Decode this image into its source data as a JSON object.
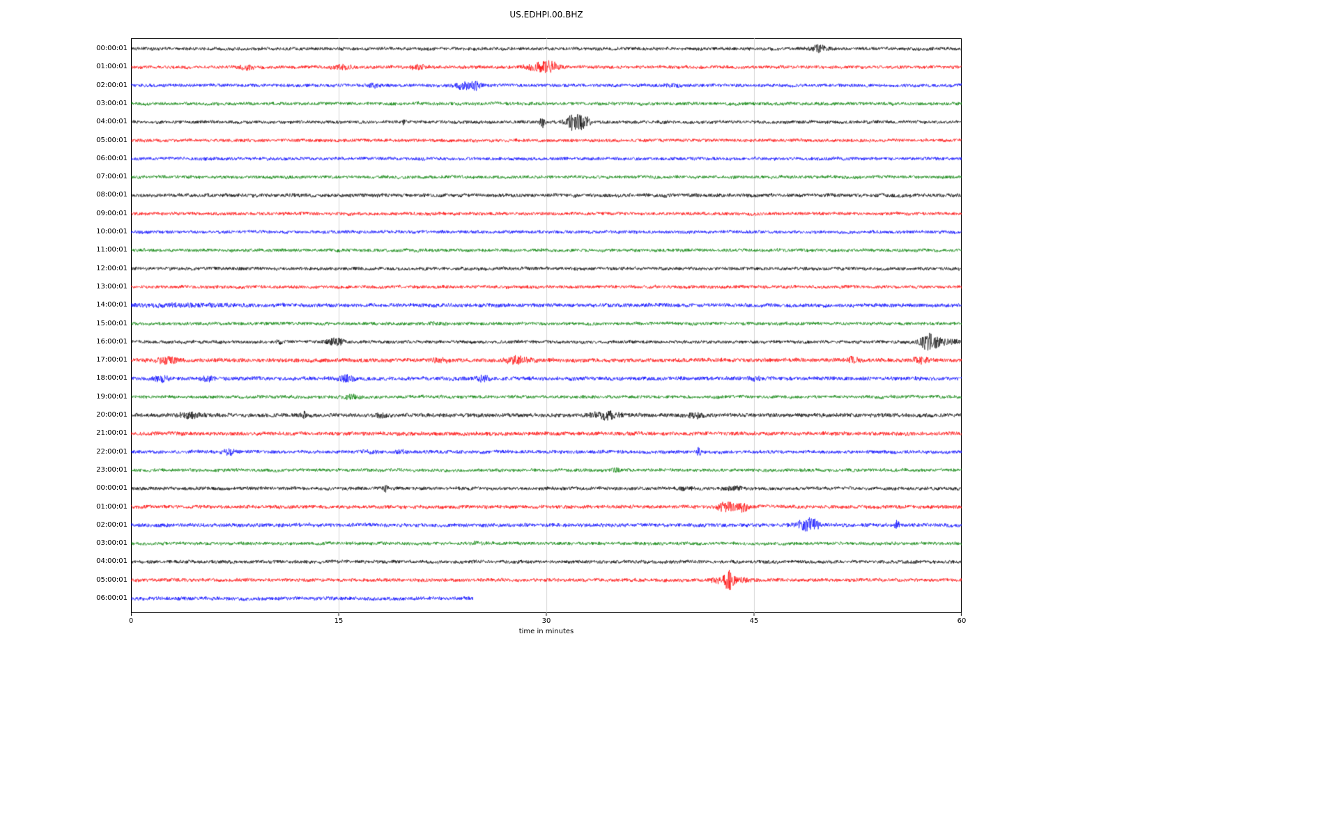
{
  "chart_data": {
    "type": "line",
    "title": "US.EDHPI.00.BHZ",
    "xlabel": "time in minutes",
    "x_range": [
      0,
      60
    ],
    "x_ticks": [
      0,
      15,
      30,
      45,
      60
    ],
    "grid": "vertical-lines-at-15-30-45",
    "legend": "none",
    "color_cycle": [
      "#000000",
      "#ff0000",
      "#0000ff",
      "#008000"
    ],
    "description": "Helicorder day-plot: 31 hourly seismogram traces, one row per hour, noise band with transient event bursts",
    "rows": [
      {
        "label": "00:00:01",
        "color": "#000000",
        "amp": 1.0,
        "end": 60,
        "events": [
          {
            "t": 49.7,
            "a": 2.0,
            "d": 0.4
          }
        ]
      },
      {
        "label": "01:00:01",
        "color": "#ff0000",
        "amp": 1.0,
        "end": 60,
        "events": [
          {
            "t": 8.3,
            "a": 1.4,
            "d": 0.3
          },
          {
            "t": 15.3,
            "a": 1.2,
            "d": 0.5
          },
          {
            "t": 20.8,
            "a": 1.1,
            "d": 0.4
          },
          {
            "t": 29.5,
            "a": 2.2,
            "d": 0.7
          },
          {
            "t": 30.3,
            "a": 2.0,
            "d": 0.4
          }
        ]
      },
      {
        "label": "02:00:01",
        "color": "#0000ff",
        "amp": 1.0,
        "end": 60,
        "events": [
          {
            "t": 17.5,
            "a": 1.0,
            "d": 0.3
          },
          {
            "t": 24.0,
            "a": 2.6,
            "d": 0.4
          },
          {
            "t": 24.9,
            "a": 2.2,
            "d": 0.3
          },
          {
            "t": 39.0,
            "a": 0.7,
            "d": 0.4
          }
        ]
      },
      {
        "label": "03:00:01",
        "color": "#008000",
        "amp": 1.0,
        "end": 60,
        "events": []
      },
      {
        "label": "04:00:01",
        "color": "#000000",
        "amp": 1.0,
        "end": 60,
        "events": [
          {
            "t": 19.7,
            "a": 1.5,
            "d": 0.1
          },
          {
            "t": 29.7,
            "a": 3.2,
            "d": 0.12
          },
          {
            "t": 32.0,
            "a": 5.0,
            "d": 0.4
          },
          {
            "t": 32.7,
            "a": 3.5,
            "d": 0.3
          }
        ]
      },
      {
        "label": "05:00:01",
        "color": "#ff0000",
        "amp": 1.0,
        "end": 60,
        "events": []
      },
      {
        "label": "06:00:01",
        "color": "#0000ff",
        "amp": 1.0,
        "end": 60,
        "events": []
      },
      {
        "label": "07:00:01",
        "color": "#008000",
        "amp": 1.0,
        "end": 60,
        "events": []
      },
      {
        "label": "08:00:01",
        "color": "#000000",
        "amp": 1.15,
        "end": 60,
        "events": []
      },
      {
        "label": "09:00:01",
        "color": "#ff0000",
        "amp": 1.0,
        "end": 60,
        "events": []
      },
      {
        "label": "10:00:01",
        "color": "#0000ff",
        "amp": 1.0,
        "end": 60,
        "events": []
      },
      {
        "label": "11:00:01",
        "color": "#008000",
        "amp": 1.0,
        "end": 60,
        "events": []
      },
      {
        "label": "12:00:01",
        "color": "#000000",
        "amp": 1.05,
        "end": 60,
        "events": []
      },
      {
        "label": "13:00:01",
        "color": "#ff0000",
        "amp": 1.0,
        "end": 60,
        "events": []
      },
      {
        "label": "14:00:01",
        "color": "#0000ff",
        "amp": 1.2,
        "end": 60,
        "events": [
          {
            "t": 3.0,
            "a": 0.4,
            "d": 3.0
          }
        ]
      },
      {
        "label": "15:00:01",
        "color": "#008000",
        "amp": 1.0,
        "end": 60,
        "events": [
          {
            "t": 22.0,
            "a": 0.5,
            "d": 0.5
          }
        ]
      },
      {
        "label": "16:00:01",
        "color": "#000000",
        "amp": 1.0,
        "end": 60,
        "events": [
          {
            "t": 10.8,
            "a": 1.0,
            "d": 0.2
          },
          {
            "t": 14.8,
            "a": 2.2,
            "d": 0.4
          },
          {
            "t": 57.6,
            "a": 4.0,
            "d": 0.4
          },
          {
            "t": 58.5,
            "a": 1.8,
            "d": 0.8
          }
        ]
      },
      {
        "label": "17:00:01",
        "color": "#ff0000",
        "amp": 1.25,
        "end": 60,
        "events": [
          {
            "t": 2.6,
            "a": 1.4,
            "d": 0.5
          },
          {
            "t": 22.3,
            "a": 1.1,
            "d": 0.3
          },
          {
            "t": 27.9,
            "a": 1.7,
            "d": 0.6
          },
          {
            "t": 52.2,
            "a": 1.1,
            "d": 0.3
          },
          {
            "t": 57.0,
            "a": 1.2,
            "d": 0.4
          }
        ]
      },
      {
        "label": "18:00:01",
        "color": "#0000ff",
        "amp": 1.2,
        "end": 60,
        "events": [
          {
            "t": 2.2,
            "a": 1.3,
            "d": 0.4
          },
          {
            "t": 5.5,
            "a": 1.2,
            "d": 0.3
          },
          {
            "t": 15.5,
            "a": 1.5,
            "d": 0.4
          },
          {
            "t": 25.4,
            "a": 1.3,
            "d": 0.3
          },
          {
            "t": 45.0,
            "a": 0.7,
            "d": 0.3
          }
        ]
      },
      {
        "label": "19:00:01",
        "color": "#008000",
        "amp": 1.0,
        "end": 60,
        "events": [
          {
            "t": 15.9,
            "a": 1.2,
            "d": 0.4
          }
        ]
      },
      {
        "label": "20:00:01",
        "color": "#000000",
        "amp": 1.25,
        "end": 60,
        "events": [
          {
            "t": 4.2,
            "a": 1.1,
            "d": 0.6
          },
          {
            "t": 12.5,
            "a": 1.5,
            "d": 0.12
          },
          {
            "t": 18.0,
            "a": 0.8,
            "d": 0.3
          },
          {
            "t": 34.3,
            "a": 1.7,
            "d": 0.7
          },
          {
            "t": 40.8,
            "a": 1.2,
            "d": 0.3
          }
        ]
      },
      {
        "label": "21:00:01",
        "color": "#ff0000",
        "amp": 1.2,
        "end": 60,
        "events": []
      },
      {
        "label": "22:00:01",
        "color": "#0000ff",
        "amp": 1.05,
        "end": 60,
        "events": [
          {
            "t": 7.1,
            "a": 1.5,
            "d": 0.3
          },
          {
            "t": 17.2,
            "a": 0.9,
            "d": 0.3
          },
          {
            "t": 19.5,
            "a": 0.8,
            "d": 0.2
          },
          {
            "t": 41.0,
            "a": 2.2,
            "d": 0.12
          }
        ]
      },
      {
        "label": "23:00:01",
        "color": "#008000",
        "amp": 1.0,
        "end": 60,
        "events": [
          {
            "t": 35.0,
            "a": 0.8,
            "d": 0.3
          }
        ]
      },
      {
        "label": "00:00:01",
        "color": "#000000",
        "amp": 1.05,
        "end": 60,
        "events": [
          {
            "t": 18.4,
            "a": 1.8,
            "d": 0.1
          },
          {
            "t": 40.0,
            "a": 0.8,
            "d": 0.5
          },
          {
            "t": 43.5,
            "a": 0.9,
            "d": 0.5
          }
        ]
      },
      {
        "label": "01:00:01",
        "color": "#ff0000",
        "amp": 1.1,
        "end": 60,
        "events": [
          {
            "t": 43.0,
            "a": 2.4,
            "d": 0.5
          },
          {
            "t": 44.2,
            "a": 2.0,
            "d": 0.3
          }
        ]
      },
      {
        "label": "02:00:01",
        "color": "#0000ff",
        "amp": 1.15,
        "end": 60,
        "events": [
          {
            "t": 48.7,
            "a": 2.4,
            "d": 0.5
          },
          {
            "t": 49.3,
            "a": 1.9,
            "d": 0.3
          },
          {
            "t": 55.3,
            "a": 1.8,
            "d": 0.12
          }
        ]
      },
      {
        "label": "03:00:01",
        "color": "#008000",
        "amp": 1.0,
        "end": 60,
        "events": [
          {
            "t": 25.0,
            "a": 0.6,
            "d": 0.3
          }
        ]
      },
      {
        "label": "04:00:01",
        "color": "#000000",
        "amp": 1.05,
        "end": 60,
        "events": []
      },
      {
        "label": "05:00:01",
        "color": "#ff0000",
        "amp": 1.05,
        "end": 60,
        "events": [
          {
            "t": 42.5,
            "a": 1.5,
            "d": 0.5
          },
          {
            "t": 43.2,
            "a": 5.5,
            "d": 0.2
          },
          {
            "t": 44.0,
            "a": 1.2,
            "d": 0.5
          }
        ]
      },
      {
        "label": "06:00:01",
        "color": "#0000ff",
        "amp": 1.1,
        "end": 24.7,
        "events": []
      }
    ]
  }
}
